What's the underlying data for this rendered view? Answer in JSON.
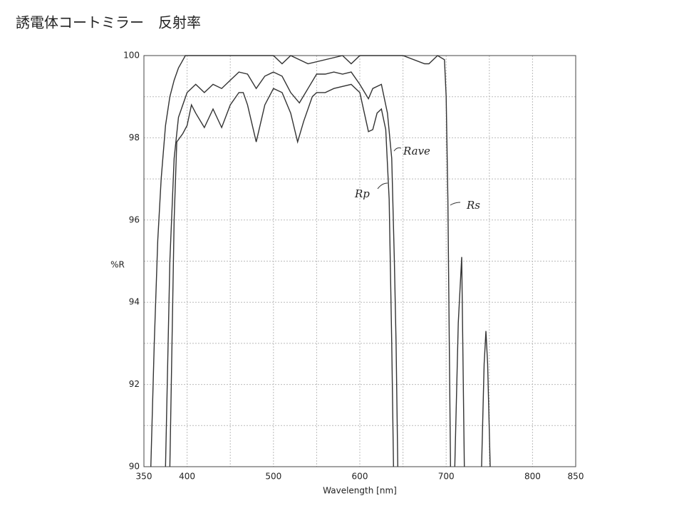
{
  "title": "誘電体コートミラー　反射率",
  "chart_data": {
    "type": "line",
    "xlabel": "Wavelength [nm]",
    "ylabel": "%R",
    "xlim": [
      350,
      850
    ],
    "ylim": [
      90,
      100
    ],
    "xticks": [
      350,
      400,
      500,
      600,
      700,
      800,
      850
    ],
    "yticks": [
      90,
      92,
      94,
      96,
      98,
      100
    ],
    "x_minor_grid": [
      450,
      550,
      650,
      750
    ],
    "y_minor_grid": [
      91,
      93,
      95,
      97,
      99
    ],
    "grid": true,
    "annotations": [
      "Rave",
      "Rp",
      "Rs"
    ],
    "series": [
      {
        "color": "#333333",
        "x": [
          358,
          362,
          366,
          370,
          375,
          380,
          385,
          390,
          398,
          420,
          450,
          500,
          510,
          520,
          540,
          580,
          590,
          600,
          650,
          675,
          680,
          690,
          698,
          700,
          702,
          705,
          707,
          710,
          714,
          718,
          721,
          730,
          741,
          744,
          746,
          748,
          751
        ],
        "values": [
          90,
          93,
          95.5,
          97,
          98.3,
          99,
          99.4,
          99.7,
          100,
          100,
          100,
          100,
          99.8,
          100,
          99.8,
          100,
          99.8,
          100,
          100,
          99.8,
          99.8,
          100,
          99.9,
          99,
          96.5,
          90,
          null,
          90,
          93.5,
          95.1,
          90,
          null,
          90,
          92.5,
          93.3,
          92.5,
          90
        ]
      },
      {
        "color": "#333333",
        "x": [
          375,
          380,
          385,
          390,
          400,
          410,
          420,
          430,
          440,
          450,
          460,
          470,
          480,
          490,
          500,
          510,
          520,
          530,
          540,
          550,
          560,
          570,
          580,
          590,
          600,
          610,
          615,
          625,
          632,
          637,
          640,
          642,
          644
        ],
        "values": [
          90,
          95,
          97.5,
          98.5,
          99.1,
          99.3,
          99.1,
          99.3,
          99.2,
          99.4,
          99.6,
          99.55,
          99.2,
          99.5,
          99.6,
          99.5,
          99.1,
          98.85,
          99.2,
          99.55,
          99.55,
          99.6,
          99.55,
          99.6,
          99.3,
          98.95,
          99.2,
          99.3,
          98.6,
          97.5,
          95,
          93,
          90
        ]
      },
      {
        "color": "#333333",
        "x": [
          380,
          385,
          388,
          395,
          400,
          405,
          410,
          420,
          430,
          440,
          450,
          460,
          465,
          470,
          480,
          490,
          500,
          510,
          520,
          528,
          535,
          545,
          550,
          560,
          570,
          590,
          600,
          610,
          615,
          620,
          625,
          630,
          634,
          637,
          639
        ],
        "values": [
          90,
          96,
          97.9,
          98.1,
          98.3,
          98.8,
          98.6,
          98.25,
          98.7,
          98.25,
          98.8,
          99.1,
          99.1,
          98.8,
          97.9,
          98.8,
          99.2,
          99.1,
          98.6,
          97.9,
          98.4,
          99,
          99.1,
          99.1,
          99.2,
          99.3,
          99.1,
          98.15,
          98.2,
          98.6,
          98.7,
          98.2,
          96.5,
          93,
          90
        ]
      }
    ]
  }
}
